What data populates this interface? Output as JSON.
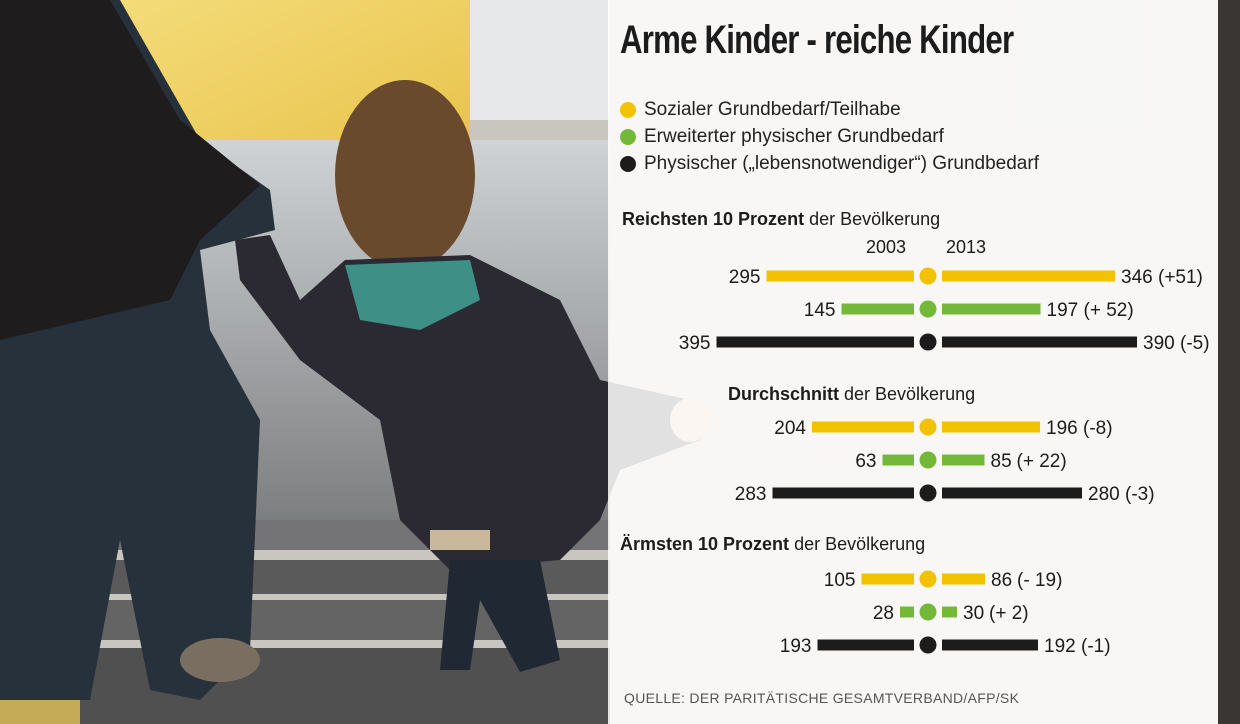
{
  "title": "Arme Kinder - reiche Kinder",
  "colors": {
    "sozial": "#f2c200",
    "erweitert": "#74b83a",
    "physisch": "#1c1c1c"
  },
  "legend": [
    {
      "label": "Sozialer Grundbedarf/Teilhabe",
      "color": "#f2c200"
    },
    {
      "label": "Erweiterter physischer Grundbedarf",
      "color": "#74b83a"
    },
    {
      "label": "Physischer („lebensnotwendiger“) Grundbedarf",
      "color": "#1c1c1c"
    }
  ],
  "years": {
    "left": "2003",
    "right": "2013"
  },
  "source": "QUELLE: DER PARITÄTISCHE GESAMTVERBAND/AFP/SK",
  "chart_data": {
    "type": "bar",
    "orientation": "diverging-horizontal",
    "categories": [
      "Sozialer Grundbedarf/Teilhabe",
      "Erweiterter physischer Grundbedarf",
      "Physischer („lebensnotwendiger“) Grundbedarf"
    ],
    "groups": [
      {
        "bold": "Reichsten 10 Prozent",
        "rest": " der Bevölkerung",
        "rows": [
          {
            "v2003": 295,
            "v2013": 346,
            "change": "(+51)"
          },
          {
            "v2003": 145,
            "v2013": 197,
            "change": "(+ 52)"
          },
          {
            "v2003": 395,
            "v2013": 390,
            "change": "(-5)"
          }
        ]
      },
      {
        "bold": "Durchschnitt",
        "rest": " der Bevölkerung",
        "rows": [
          {
            "v2003": 204,
            "v2013": 196,
            "change": "(-8)"
          },
          {
            "v2003": 63,
            "v2013": 85,
            "change": "(+ 22)"
          },
          {
            "v2003": 283,
            "v2013": 280,
            "change": "(-3)"
          }
        ]
      },
      {
        "bold": "Ärmsten 10 Prozent",
        "rest": " der Bevölkerung",
        "rows": [
          {
            "v2003": 105,
            "v2013": 86,
            "change": "(- 19)"
          },
          {
            "v2003": 28,
            "v2013": 30,
            "change": "(+ 2)"
          },
          {
            "v2003": 193,
            "v2013": 192,
            "change": "(-1)"
          }
        ]
      }
    ]
  }
}
